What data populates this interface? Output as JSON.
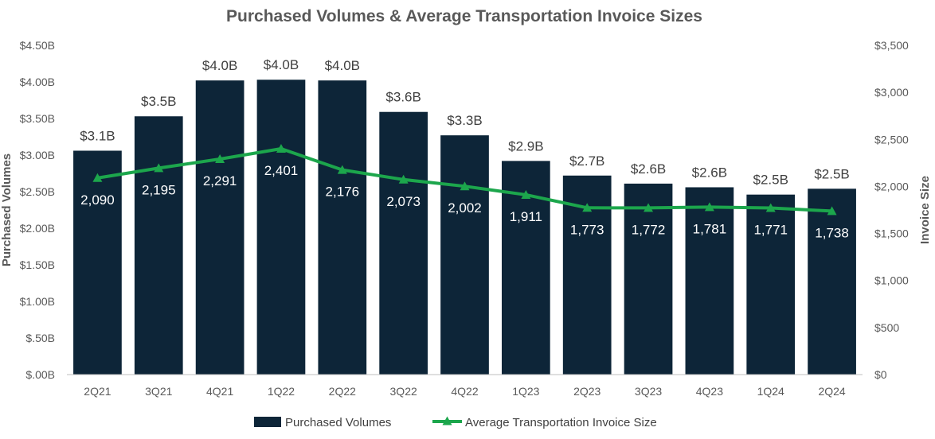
{
  "chart_data": {
    "type": "bar",
    "title": "Purchased Volumes & Average Transportation Invoice Sizes",
    "categories": [
      "2Q21",
      "3Q21",
      "4Q21",
      "1Q22",
      "2Q22",
      "3Q22",
      "4Q22",
      "1Q23",
      "2Q23",
      "3Q23",
      "4Q23",
      "1Q24",
      "2Q24"
    ],
    "series": [
      {
        "name": "Purchased Volumes",
        "type": "bar",
        "axis": "left",
        "color": "#0d2538",
        "values": [
          3.06,
          3.53,
          4.02,
          4.03,
          4.02,
          3.59,
          3.27,
          2.92,
          2.72,
          2.61,
          2.56,
          2.46,
          2.54
        ],
        "labels": [
          "$3.1B",
          "$3.5B",
          "$4.0B",
          "$4.0B",
          "$4.0B",
          "$3.6B",
          "$3.3B",
          "$2.9B",
          "$2.7B",
          "$2.6B",
          "$2.6B",
          "$2.5B",
          "$2.5B"
        ]
      },
      {
        "name": "Average Transportation Invoice Size",
        "type": "line",
        "axis": "right",
        "marker": "triangle",
        "color": "#1ca64c",
        "values": [
          2090,
          2195,
          2291,
          2401,
          2176,
          2073,
          2002,
          1911,
          1773,
          1772,
          1781,
          1771,
          1738
        ],
        "labels": [
          "2,090",
          "2,195",
          "2,291",
          "2,401",
          "2,176",
          "2,073",
          "2,002",
          "1,911",
          "1,773",
          "1,772",
          "1,781",
          "1,771",
          "1,738"
        ]
      }
    ],
    "ylabel": "Purchased Volumes",
    "y2label": "Invoice Size",
    "ylim": [
      0,
      4.5
    ],
    "y2lim": [
      0,
      3500
    ],
    "yticks": [
      "$.00B",
      "$.50B",
      "$1.00B",
      "$1.50B",
      "$2.00B",
      "$2.50B",
      "$3.00B",
      "$3.50B",
      "$4.00B",
      "$4.50B"
    ],
    "y2ticks": [
      "$0",
      "$500",
      "$1,000",
      "$1,500",
      "$2,000",
      "$2,500",
      "$3,000",
      "$3,500"
    ],
    "grid": false,
    "legend": "bottom-center"
  }
}
